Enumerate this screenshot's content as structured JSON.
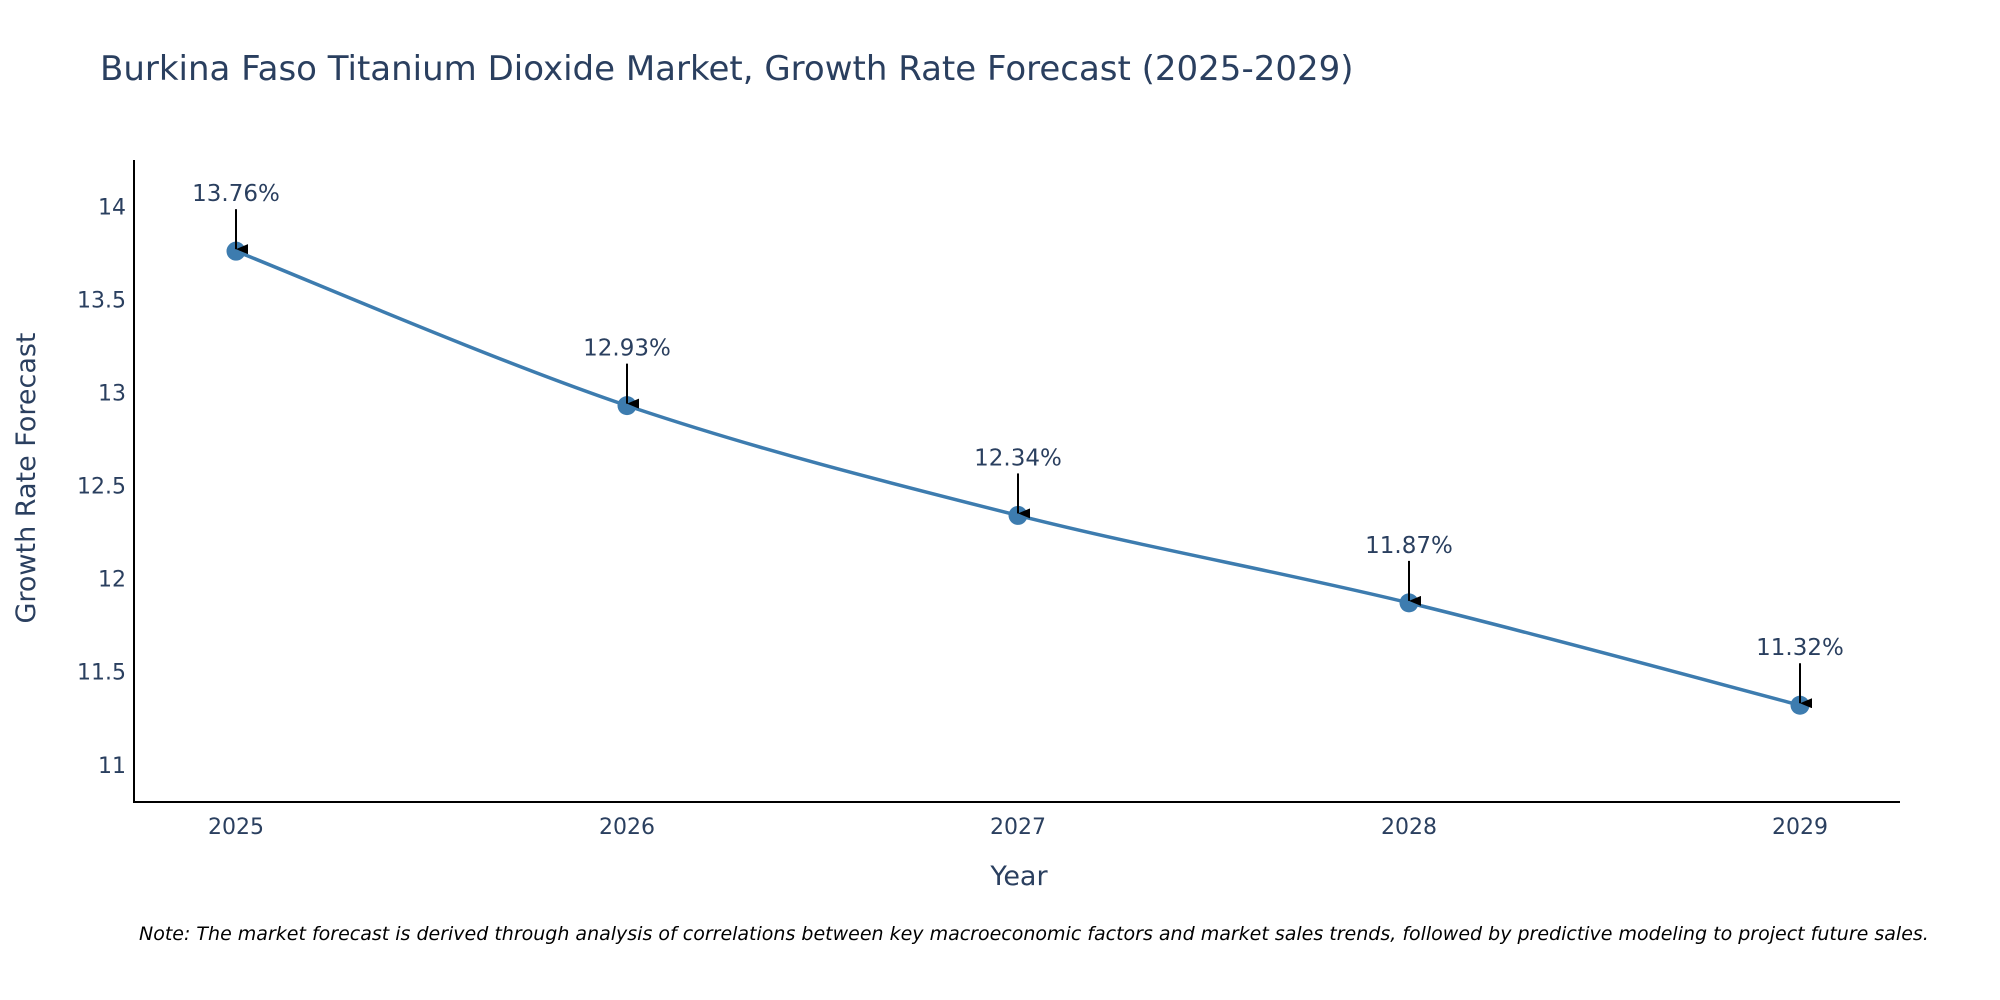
{
  "chart_data": {
    "type": "line",
    "title": "Burkina Faso Titanium Dioxide Market, Growth Rate Forecast (2025-2029)",
    "xlabel": "Year",
    "ylabel": "Growth Rate Forecast",
    "categories": [
      "2025",
      "2026",
      "2027",
      "2028",
      "2029"
    ],
    "series": [
      {
        "name": "Growth Rate Forecast",
        "values": [
          13.76,
          12.93,
          12.34,
          11.87,
          11.32
        ],
        "labels": [
          "13.76%",
          "12.93%",
          "12.34%",
          "11.87%",
          "11.32%"
        ]
      }
    ],
    "ylim": [
      10.8,
      14.25
    ],
    "yticks": [
      11,
      11.5,
      12,
      12.5,
      13,
      13.5,
      14
    ],
    "ytick_labels": [
      "11",
      "11.5",
      "12",
      "12.5",
      "13",
      "13.5",
      "14"
    ],
    "grid": false,
    "note": "Note: The market forecast is derived through analysis of correlations between key macroeconomic factors and market sales trends, followed by predictive modeling to project future sales."
  },
  "colors": {
    "line": "#3d7caf",
    "marker": "#3d7caf",
    "arrow": "#000000",
    "axis": "#000000",
    "text": "#2a3f5f"
  }
}
